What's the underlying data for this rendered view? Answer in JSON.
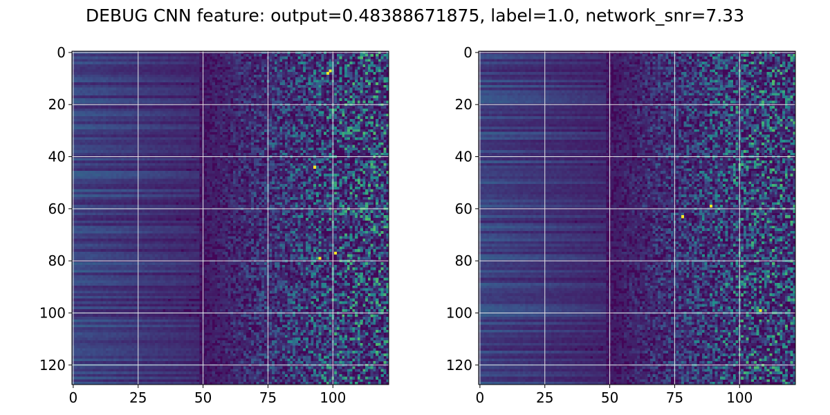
{
  "figure": {
    "title": "DEBUG CNN feature: output=0.48388671875, label=1.0, network_snr=7.33"
  },
  "chart_data": [
    {
      "type": "heatmap",
      "title": "",
      "xlabel": "",
      "ylabel": "",
      "xlim": [
        -0.5,
        121.5
      ],
      "ylim": [
        127.5,
        -0.5
      ],
      "x_ticks": [
        0,
        25,
        50,
        75,
        100
      ],
      "y_ticks": [
        0,
        20,
        40,
        60,
        80,
        100,
        120
      ],
      "x_tick_labels": [
        "0",
        "25",
        "50",
        "75",
        "100"
      ],
      "y_tick_labels": [
        "0",
        "20",
        "40",
        "60",
        "80",
        "100",
        "120"
      ],
      "rows": 128,
      "cols": 122,
      "colormap": "viridis",
      "grid": true,
      "hotspots": [
        [
          7,
          99
        ],
        [
          8,
          98
        ],
        [
          77,
          101
        ],
        [
          79,
          95
        ],
        [
          44,
          93
        ]
      ]
    },
    {
      "type": "heatmap",
      "title": "",
      "xlabel": "",
      "ylabel": "",
      "xlim": [
        -0.5,
        121.5
      ],
      "ylim": [
        127.5,
        -0.5
      ],
      "x_ticks": [
        0,
        25,
        50,
        75,
        100
      ],
      "y_ticks": [
        0,
        20,
        40,
        60,
        80,
        100,
        120
      ],
      "x_tick_labels": [
        "0",
        "25",
        "50",
        "75",
        "100"
      ],
      "y_tick_labels": [
        "0",
        "20",
        "40",
        "60",
        "80",
        "100",
        "120"
      ],
      "rows": 128,
      "cols": 122,
      "colormap": "viridis",
      "grid": true,
      "hotspots": [
        [
          59,
          89
        ],
        [
          99,
          108
        ],
        [
          63,
          78
        ]
      ]
    }
  ],
  "colors": {
    "low": "#440154",
    "mid_low": "#3b528b",
    "mid": "#21918c",
    "mid_high": "#5ec962",
    "high": "#fde725",
    "grid": "#e6e6e6"
  }
}
